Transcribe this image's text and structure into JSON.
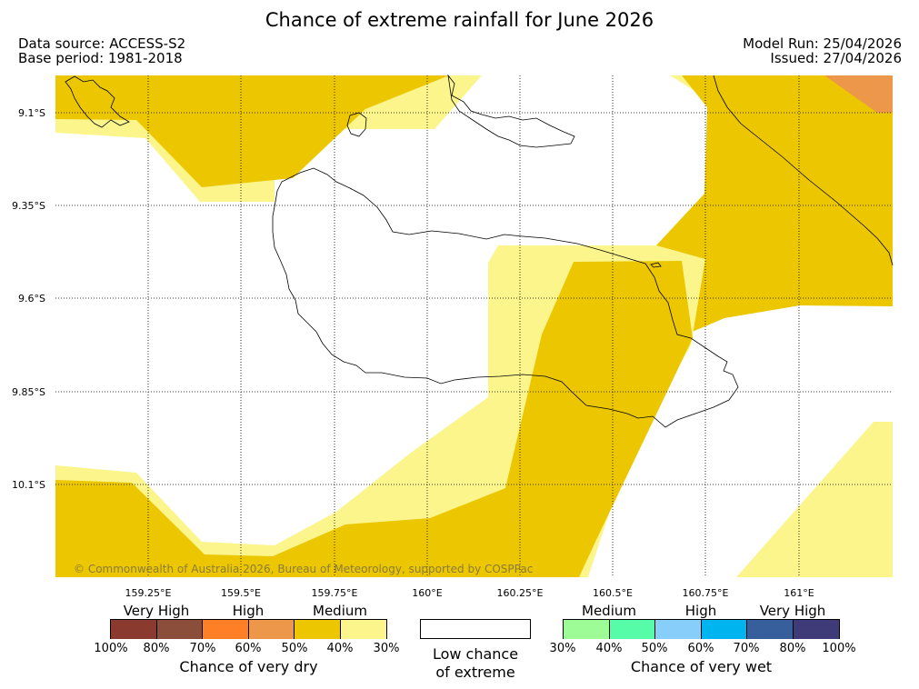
{
  "title": "Chance of extreme rainfall for June 2026",
  "header": {
    "data_source": "Data source: ACCESS-S2",
    "base_period": "Base period: 1981-2018",
    "model_run": "Model Run: 25/04/2026",
    "issued": "Issued: 27/04/2026"
  },
  "map": {
    "lat_labels": [
      "9.1°S",
      "9.35°S",
      "9.6°S",
      "9.85°S",
      "10.1°S"
    ],
    "lon_labels": [
      "159.25°E",
      "159.5°E",
      "159.75°E",
      "160°E",
      "160.25°E",
      "160.5°E",
      "160.75°E",
      "161°E"
    ],
    "copyright": "© Commonwealth of Australia 2026, Bureau of Meteorology, supported by COSPPac",
    "colors": {
      "medium_dry": "#ecc700",
      "low_dry": "#fbf58c",
      "high_dry": "#ec974a",
      "coast": "#000000"
    }
  },
  "legend": {
    "dry": {
      "headings": [
        "Very High",
        "High",
        "Medium"
      ],
      "colors": [
        "#8b3a2f",
        "#8b4e3a",
        "#ff7f27",
        "#ec974a",
        "#ecc700",
        "#fbf58c"
      ],
      "ticks": [
        "100%",
        "80%",
        "70%",
        "60%",
        "50%",
        "40%",
        "30%"
      ],
      "caption": "Chance of very dry"
    },
    "neutral": {
      "color": "#ffffff",
      "caption_line1": "Low chance",
      "caption_line2": "of extreme"
    },
    "wet": {
      "headings": [
        "Medium",
        "High",
        "Very High"
      ],
      "colors": [
        "#9dfc96",
        "#57fca8",
        "#87cefa",
        "#00b4f0",
        "#375f9b",
        "#3f3a78"
      ],
      "ticks": [
        "30%",
        "40%",
        "50%",
        "60%",
        "70%",
        "80%",
        "100%"
      ],
      "caption": "Chance of very wet"
    }
  }
}
